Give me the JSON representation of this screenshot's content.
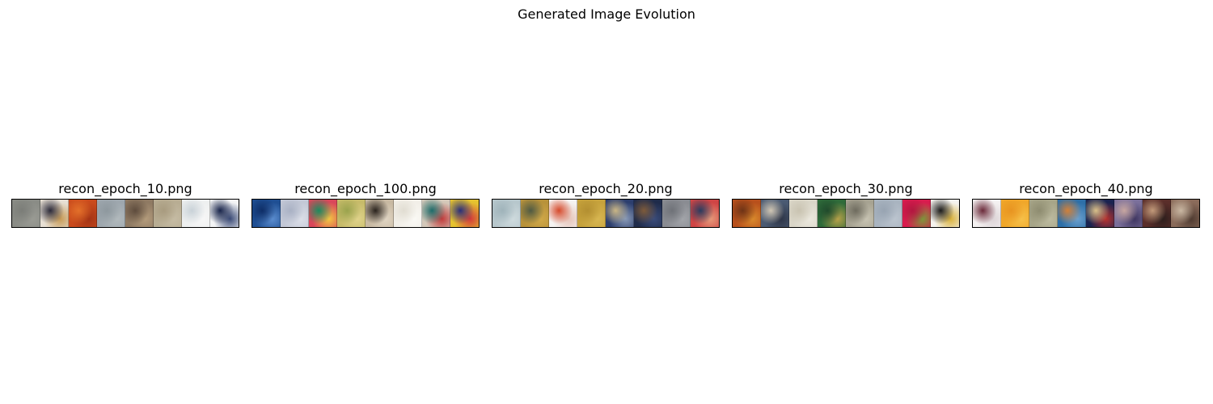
{
  "figure": {
    "title": "Generated Image Evolution"
  },
  "panels": [
    {
      "title": "recon_epoch_10.png",
      "tiles": [
        {
          "colors": [
            "#8a8c86",
            "#7b7d78",
            "#9a9b94"
          ]
        },
        {
          "colors": [
            "#e7dfd3",
            "#2b2a3a",
            "#c79a55"
          ]
        },
        {
          "colors": [
            "#c94a1c",
            "#e3702a",
            "#a33314"
          ]
        },
        {
          "colors": [
            "#9ea7ae",
            "#8e989e",
            "#b2babd"
          ]
        },
        {
          "colors": [
            "#8f7a63",
            "#5e4c3d",
            "#b49c7c"
          ]
        },
        {
          "colors": [
            "#b8ad93",
            "#a89b7f",
            "#c6bca4"
          ]
        },
        {
          "colors": [
            "#eef0f0",
            "#c9d2d8",
            "#f7f7f7"
          ]
        },
        {
          "colors": [
            "#f3f4f5",
            "#18244a",
            "#3b4b77"
          ]
        }
      ]
    },
    {
      "title": "recon_epoch_100.png",
      "tiles": [
        {
          "colors": [
            "#1f4f93",
            "#0e2d66",
            "#5c8ed0"
          ]
        },
        {
          "colors": [
            "#c3c8d6",
            "#a9b1c4",
            "#dcdfe8"
          ]
        },
        {
          "colors": [
            "#d9475a",
            "#1c8a5e",
            "#f3c742"
          ]
        },
        {
          "colors": [
            "#c7bb6a",
            "#9aa34d",
            "#e0d38b"
          ]
        },
        {
          "colors": [
            "#c8b9a2",
            "#2a231d",
            "#e0d5c3"
          ]
        },
        {
          "colors": [
            "#f2efe8",
            "#e1ddd2",
            "#faf9f5"
          ]
        },
        {
          "colors": [
            "#d4c8b9",
            "#1d6c6a",
            "#c23b3b"
          ]
        },
        {
          "colors": [
            "#e5c22f",
            "#2a2f7a",
            "#d23a3a"
          ]
        }
      ]
    },
    {
      "title": "recon_epoch_20.png",
      "tiles": [
        {
          "colors": [
            "#b7c7cc",
            "#9fb3ba",
            "#cfdbde"
          ]
        },
        {
          "colors": [
            "#b8923a",
            "#4f5a43",
            "#d0a848"
          ]
        },
        {
          "colors": [
            "#f5f3f1",
            "#d64a2c",
            "#e6c3b8"
          ]
        },
        {
          "colors": [
            "#c6a23c",
            "#b38f31",
            "#d8b752"
          ]
        },
        {
          "colors": [
            "#2c3e6e",
            "#c9b585",
            "#8899b6"
          ]
        },
        {
          "colors": [
            "#1f2b4a",
            "#7d5a3a",
            "#3a4c7a"
          ]
        },
        {
          "colors": [
            "#8a8c92",
            "#6f7278",
            "#a3a5aa"
          ]
        },
        {
          "colors": [
            "#cf4545",
            "#2a3b5e",
            "#e69a7a"
          ]
        }
      ]
    },
    {
      "title": "recon_epoch_30.png",
      "tiles": [
        {
          "colors": [
            "#b8501c",
            "#6e3316",
            "#d98a2c"
          ]
        },
        {
          "colors": [
            "#4a5a72",
            "#d0c6b4",
            "#2d3446"
          ]
        },
        {
          "colors": [
            "#dad6c8",
            "#c9c3b1",
            "#ebe8de"
          ]
        },
        {
          "colors": [
            "#2f6b3a",
            "#1f4a2c",
            "#b9a24a"
          ]
        },
        {
          "colors": [
            "#a7a392",
            "#6e6b5e",
            "#c8c4b3"
          ]
        },
        {
          "colors": [
            "#a9b4c0",
            "#98a4b2",
            "#bcc5cf"
          ]
        },
        {
          "colors": [
            "#d81c4e",
            "#b31640",
            "#7a9a3a"
          ]
        },
        {
          "colors": [
            "#f5f3ee",
            "#1b1b1b",
            "#d9b13a"
          ]
        }
      ]
    },
    {
      "title": "recon_epoch_40.png",
      "tiles": [
        {
          "colors": [
            "#f4f1f1",
            "#6b2a3a",
            "#dcd3d6"
          ]
        },
        {
          "colors": [
            "#f0a72a",
            "#e89421",
            "#f6c14a"
          ]
        },
        {
          "colors": [
            "#a7a588",
            "#8e8c70",
            "#bdbba0"
          ]
        },
        {
          "colors": [
            "#2d6fa8",
            "#d0803a",
            "#6a9fcd"
          ]
        },
        {
          "colors": [
            "#1a2350",
            "#d8c08a",
            "#b8322e"
          ]
        },
        {
          "colors": [
            "#7a6f9a",
            "#c7a6a0",
            "#3e3560"
          ]
        },
        {
          "colors": [
            "#5a2e2a",
            "#c29a7a",
            "#2c1e1c"
          ]
        },
        {
          "colors": [
            "#8a6b5a",
            "#c9b7a2",
            "#4e3a30"
          ]
        }
      ]
    }
  ]
}
